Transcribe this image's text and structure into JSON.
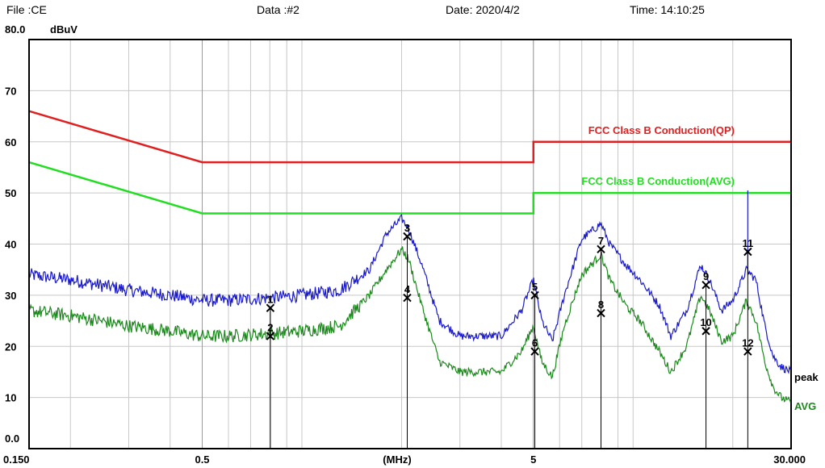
{
  "header": {
    "file": "File :CE",
    "data": "Data :#2",
    "date": "Date: 2020/4/2",
    "time": "Time: 14:10:25"
  },
  "chart_data": {
    "type": "line",
    "ylabel": "dBuV",
    "xlabel": "(MHz)",
    "x_scale": "log",
    "xlim": [
      0.15,
      30
    ],
    "ylim": [
      0,
      80
    ],
    "y_ticks": [
      {
        "value": 0,
        "label": "0.0"
      },
      {
        "value": 10,
        "label": "10"
      },
      {
        "value": 20,
        "label": "20"
      },
      {
        "value": 30,
        "label": "30"
      },
      {
        "value": 40,
        "label": "40"
      },
      {
        "value": 50,
        "label": "50"
      },
      {
        "value": 60,
        "label": "60"
      },
      {
        "value": 70,
        "label": "70"
      },
      {
        "value": 80,
        "label": "80.0"
      }
    ],
    "x_ticks": [
      {
        "value": 0.15,
        "label": "0.150"
      },
      {
        "value": 0.5,
        "label": "0.5"
      },
      {
        "value": 5,
        "label": "5"
      },
      {
        "value": 30,
        "label": "30.000"
      }
    ],
    "grid": true,
    "limit_lines": [
      {
        "name": "FCC Class B Conduction(QP)",
        "color": "#e02020",
        "points": [
          [
            0.15,
            66
          ],
          [
            0.5,
            56
          ],
          [
            5,
            56
          ],
          [
            5,
            60
          ],
          [
            30,
            60
          ]
        ]
      },
      {
        "name": "FCC Class B Conduction(AVG)",
        "color": "#22dd22",
        "points": [
          [
            0.15,
            56
          ],
          [
            0.5,
            46
          ],
          [
            5,
            46
          ],
          [
            5,
            50
          ],
          [
            30,
            50
          ]
        ]
      }
    ],
    "series": [
      {
        "name": "peak",
        "color": "#1a1acc",
        "x": [
          0.15,
          0.2,
          0.3,
          0.4,
          0.5,
          0.6,
          0.8,
          1.0,
          1.3,
          1.6,
          1.8,
          2.0,
          2.1,
          2.3,
          2.6,
          3.0,
          4.0,
          4.6,
          5.0,
          5.3,
          5.7,
          6.2,
          7.0,
          8.0,
          8.5,
          9.5,
          10.5,
          12,
          13,
          14.5,
          16,
          17,
          18.5,
          20,
          22,
          23.5,
          25,
          26.5,
          28,
          30
        ],
        "y": [
          34,
          33,
          31,
          30,
          29,
          29,
          29.5,
          30,
          31,
          35,
          42,
          45,
          43,
          36,
          25,
          22,
          22,
          27,
          33,
          25,
          21,
          30,
          41,
          44,
          40,
          36,
          33,
          28,
          22,
          27,
          36,
          33,
          27,
          29,
          35,
          33,
          24,
          18,
          16,
          15
        ]
      },
      {
        "name": "AVG",
        "color": "#1a8a1a",
        "x": [
          0.15,
          0.2,
          0.3,
          0.4,
          0.5,
          0.6,
          0.8,
          1.0,
          1.3,
          1.6,
          1.8,
          2.0,
          2.1,
          2.3,
          2.6,
          3.0,
          4.0,
          4.6,
          5.0,
          5.3,
          5.7,
          6.2,
          7.0,
          8.0,
          8.5,
          9.5,
          10.5,
          12,
          13,
          14.5,
          16,
          17,
          18.5,
          20,
          22,
          23.5,
          25,
          26.5,
          28,
          30
        ],
        "y": [
          27,
          26,
          24,
          23,
          22,
          22,
          22.5,
          23,
          24,
          30,
          35,
          39,
          37,
          28,
          17,
          15,
          15,
          19,
          24,
          17,
          14,
          24,
          34,
          38,
          33,
          28,
          25,
          19,
          15,
          20,
          30,
          27,
          21,
          22,
          29,
          25,
          17,
          12,
          10,
          9
        ]
      }
    ],
    "end_labels": [
      {
        "label": "peak",
        "color": "#000000"
      },
      {
        "label": "AVG",
        "color": "#1a8a1a"
      }
    ],
    "markers": [
      {
        "id": "1",
        "x": 0.803,
        "y": 27.5
      },
      {
        "id": "2",
        "x": 0.803,
        "y": 22.0
      },
      {
        "id": "3",
        "x": 2.08,
        "y": 41.5
      },
      {
        "id": "4",
        "x": 2.08,
        "y": 29.5
      },
      {
        "id": "5",
        "x": 5.05,
        "y": 30.0
      },
      {
        "id": "6",
        "x": 5.05,
        "y": 19.0
      },
      {
        "id": "7",
        "x": 8.0,
        "y": 39.0
      },
      {
        "id": "8",
        "x": 8.0,
        "y": 26.5
      },
      {
        "id": "9",
        "x": 16.6,
        "y": 32.0
      },
      {
        "id": "10",
        "x": 16.6,
        "y": 23.0
      },
      {
        "id": "11",
        "x": 22.2,
        "y": 38.5
      },
      {
        "id": "12",
        "x": 22.2,
        "y": 19.0
      }
    ]
  }
}
